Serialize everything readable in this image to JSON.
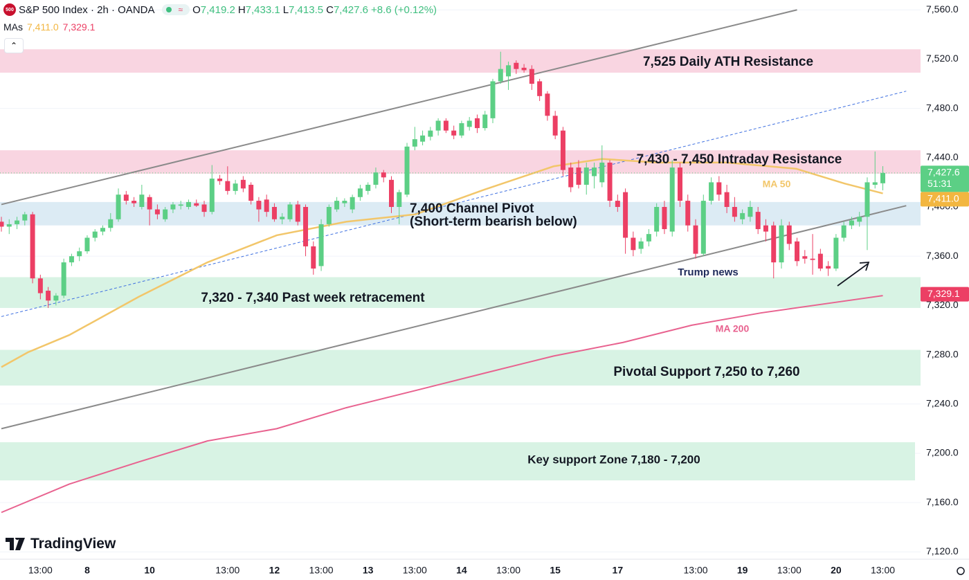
{
  "header": {
    "symbol": "S&P 500 Index · 2h · OANDA",
    "logo": "500",
    "wave": "≈",
    "o_label": "O",
    "open": "7,419.2",
    "h_label": "H",
    "high": "7,433.1",
    "l_label": "L",
    "low": "7,413.5",
    "c_label": "C",
    "close": "7,427.6",
    "change": "+8.6 (+0.12%)",
    "mas_label": "MAs",
    "ma50_value": "7,411.0",
    "ma200_value": "7,329.1",
    "collapse": "⌃"
  },
  "watermark": "TradingView",
  "chart_data": {
    "type": "candlestick",
    "up_color": "#5ccf85",
    "down_color": "#ec3f64",
    "ylim": [
      7114,
      7568
    ],
    "yticks": [
      {
        "value": 7120,
        "label": "7,120.0"
      },
      {
        "value": 7160,
        "label": "7,160.0"
      },
      {
        "value": 7200,
        "label": "7,200.0"
      },
      {
        "value": 7240,
        "label": "7,240.0"
      },
      {
        "value": 7280,
        "label": "7,280.0"
      },
      {
        "value": 7320,
        "label": "7,320.0"
      },
      {
        "value": 7360,
        "label": "7,360.0"
      },
      {
        "value": 7400,
        "label": "7,400.0"
      },
      {
        "value": 7440,
        "label": "7,440.0"
      },
      {
        "value": 7480,
        "label": "7,480.0"
      },
      {
        "value": 7520,
        "label": "7,520.0"
      },
      {
        "value": 7560,
        "label": "7,560.0"
      }
    ],
    "grid": true,
    "categories": [
      null,
      null,
      null,
      null,
      null,
      "13:00",
      null,
      null,
      null,
      null,
      null,
      "8",
      null,
      null,
      null,
      null,
      null,
      null,
      null,
      "10",
      null,
      null,
      null,
      null,
      null,
      null,
      null,
      null,
      null,
      "13:00",
      null,
      null,
      null,
      null,
      null,
      "12",
      null,
      null,
      null,
      null,
      null,
      "13:00",
      null,
      null,
      null,
      null,
      null,
      "13",
      null,
      null,
      null,
      null,
      null,
      "13:00",
      null,
      null,
      null,
      null,
      null,
      "14",
      null,
      null,
      null,
      null,
      null,
      "13:00",
      null,
      null,
      null,
      null,
      null,
      "15",
      null,
      null,
      null,
      null,
      null,
      null,
      null,
      "17",
      null,
      null,
      null,
      null,
      null,
      null,
      null,
      null,
      null,
      "13:00",
      null,
      null,
      null,
      null,
      null,
      "19",
      null,
      null,
      null,
      null,
      null,
      "13:00",
      null,
      null,
      null,
      null,
      null,
      "20",
      null,
      null,
      null,
      null,
      null,
      "13:00"
    ],
    "candles": [
      {
        "o": 7388,
        "h": 7392,
        "l": 7380,
        "c": 7384
      },
      {
        "o": 7384,
        "h": 7390,
        "l": 7378,
        "c": 7386
      },
      {
        "o": 7386,
        "h": 7392,
        "l": 7382,
        "c": 7389
      },
      {
        "o": 7389,
        "h": 7396,
        "l": 7385,
        "c": 7394
      },
      {
        "o": 7394,
        "h": 7396,
        "l": 7338,
        "c": 7342
      },
      {
        "o": 7342,
        "h": 7345,
        "l": 7325,
        "c": 7330
      },
      {
        "o": 7332,
        "h": 7335,
        "l": 7318,
        "c": 7324
      },
      {
        "o": 7324,
        "h": 7330,
        "l": 7320,
        "c": 7328
      },
      {
        "o": 7328,
        "h": 7358,
        "l": 7326,
        "c": 7355
      },
      {
        "o": 7355,
        "h": 7362,
        "l": 7352,
        "c": 7360
      },
      {
        "o": 7360,
        "h": 7367,
        "l": 7356,
        "c": 7364
      },
      {
        "o": 7364,
        "h": 7377,
        "l": 7362,
        "c": 7375
      },
      {
        "o": 7375,
        "h": 7382,
        "l": 7372,
        "c": 7380
      },
      {
        "o": 7380,
        "h": 7385,
        "l": 7377,
        "c": 7383
      },
      {
        "o": 7383,
        "h": 7395,
        "l": 7380,
        "c": 7390
      },
      {
        "o": 7390,
        "h": 7415,
        "l": 7388,
        "c": 7410
      },
      {
        "o": 7410,
        "h": 7413,
        "l": 7402,
        "c": 7405
      },
      {
        "o": 7405,
        "h": 7408,
        "l": 7400,
        "c": 7403
      },
      {
        "o": 7400,
        "h": 7418,
        "l": 7398,
        "c": 7410
      },
      {
        "o": 7408,
        "h": 7410,
        "l": 7385,
        "c": 7398
      },
      {
        "o": 7398,
        "h": 7402,
        "l": 7390,
        "c": 7394
      },
      {
        "o": 7390,
        "h": 7400,
        "l": 7388,
        "c": 7398
      },
      {
        "o": 7398,
        "h": 7404,
        "l": 7395,
        "c": 7402
      },
      {
        "o": 7401,
        "h": 7405,
        "l": 7398,
        "c": 7402
      },
      {
        "o": 7400,
        "h": 7406,
        "l": 7398,
        "c": 7404
      },
      {
        "o": 7403,
        "h": 7406,
        "l": 7400,
        "c": 7401
      },
      {
        "o": 7402,
        "h": 7405,
        "l": 7392,
        "c": 7396
      },
      {
        "o": 7396,
        "h": 7434,
        "l": 7394,
        "c": 7423
      },
      {
        "o": 7423,
        "h": 7426,
        "l": 7418,
        "c": 7421
      },
      {
        "o": 7421,
        "h": 7433,
        "l": 7410,
        "c": 7413
      },
      {
        "o": 7413,
        "h": 7422,
        "l": 7410,
        "c": 7419
      },
      {
        "o": 7422,
        "h": 7425,
        "l": 7412,
        "c": 7415
      },
      {
        "o": 7418,
        "h": 7420,
        "l": 7402,
        "c": 7405
      },
      {
        "o": 7405,
        "h": 7408,
        "l": 7388,
        "c": 7398
      },
      {
        "o": 7406,
        "h": 7410,
        "l": 7392,
        "c": 7396
      },
      {
        "o": 7400,
        "h": 7403,
        "l": 7388,
        "c": 7390
      },
      {
        "o": 7390,
        "h": 7395,
        "l": 7386,
        "c": 7392
      },
      {
        "o": 7390,
        "h": 7404,
        "l": 7388,
        "c": 7402
      },
      {
        "o": 7402,
        "h": 7405,
        "l": 7385,
        "c": 7388
      },
      {
        "o": 7400,
        "h": 7402,
        "l": 7360,
        "c": 7368
      },
      {
        "o": 7368,
        "h": 7372,
        "l": 7345,
        "c": 7350
      },
      {
        "o": 7352,
        "h": 7390,
        "l": 7348,
        "c": 7386
      },
      {
        "o": 7386,
        "h": 7402,
        "l": 7384,
        "c": 7400
      },
      {
        "o": 7398,
        "h": 7408,
        "l": 7396,
        "c": 7405
      },
      {
        "o": 7403,
        "h": 7407,
        "l": 7400,
        "c": 7405
      },
      {
        "o": 7398,
        "h": 7410,
        "l": 7395,
        "c": 7408
      },
      {
        "o": 7408,
        "h": 7418,
        "l": 7405,
        "c": 7415
      },
      {
        "o": 7413,
        "h": 7420,
        "l": 7410,
        "c": 7418
      },
      {
        "o": 7418,
        "h": 7432,
        "l": 7415,
        "c": 7428
      },
      {
        "o": 7428,
        "h": 7430,
        "l": 7420,
        "c": 7424
      },
      {
        "o": 7422,
        "h": 7425,
        "l": 7395,
        "c": 7400
      },
      {
        "o": 7400,
        "h": 7414,
        "l": 7386,
        "c": 7412
      },
      {
        "o": 7410,
        "h": 7452,
        "l": 7408,
        "c": 7449
      },
      {
        "o": 7449,
        "h": 7465,
        "l": 7446,
        "c": 7455
      },
      {
        "o": 7453,
        "h": 7462,
        "l": 7450,
        "c": 7458
      },
      {
        "o": 7457,
        "h": 7465,
        "l": 7454,
        "c": 7462
      },
      {
        "o": 7462,
        "h": 7472,
        "l": 7458,
        "c": 7470
      },
      {
        "o": 7470,
        "h": 7472,
        "l": 7460,
        "c": 7462
      },
      {
        "o": 7462,
        "h": 7466,
        "l": 7455,
        "c": 7458
      },
      {
        "o": 7458,
        "h": 7470,
        "l": 7456,
        "c": 7468
      },
      {
        "o": 7465,
        "h": 7473,
        "l": 7462,
        "c": 7470
      },
      {
        "o": 7472,
        "h": 7475,
        "l": 7460,
        "c": 7464
      },
      {
        "o": 7464,
        "h": 7478,
        "l": 7462,
        "c": 7475
      },
      {
        "o": 7472,
        "h": 7504,
        "l": 7468,
        "c": 7502
      },
      {
        "o": 7502,
        "h": 7526,
        "l": 7500,
        "c": 7512
      },
      {
        "o": 7506,
        "h": 7518,
        "l": 7495,
        "c": 7515
      },
      {
        "o": 7517,
        "h": 7519,
        "l": 7508,
        "c": 7512
      },
      {
        "o": 7513,
        "h": 7516,
        "l": 7509,
        "c": 7511
      },
      {
        "o": 7512,
        "h": 7515,
        "l": 7495,
        "c": 7500
      },
      {
        "o": 7502,
        "h": 7504,
        "l": 7486,
        "c": 7490
      },
      {
        "o": 7492,
        "h": 7494,
        "l": 7470,
        "c": 7474
      },
      {
        "o": 7474,
        "h": 7478,
        "l": 7455,
        "c": 7458
      },
      {
        "o": 7462,
        "h": 7465,
        "l": 7425,
        "c": 7430
      },
      {
        "o": 7432,
        "h": 7436,
        "l": 7412,
        "c": 7416
      },
      {
        "o": 7432,
        "h": 7438,
        "l": 7415,
        "c": 7418
      },
      {
        "o": 7418,
        "h": 7436,
        "l": 7410,
        "c": 7432
      },
      {
        "o": 7425,
        "h": 7436,
        "l": 7415,
        "c": 7432
      },
      {
        "o": 7420,
        "h": 7450,
        "l": 7416,
        "c": 7436
      },
      {
        "o": 7436,
        "h": 7438,
        "l": 7400,
        "c": 7405
      },
      {
        "o": 7405,
        "h": 7410,
        "l": 7396,
        "c": 7400
      },
      {
        "o": 7412,
        "h": 7415,
        "l": 7362,
        "c": 7375
      },
      {
        "o": 7375,
        "h": 7380,
        "l": 7360,
        "c": 7365
      },
      {
        "o": 7366,
        "h": 7375,
        "l": 7362,
        "c": 7372
      },
      {
        "o": 7372,
        "h": 7382,
        "l": 7368,
        "c": 7378
      },
      {
        "o": 7380,
        "h": 7403,
        "l": 7376,
        "c": 7400
      },
      {
        "o": 7400,
        "h": 7405,
        "l": 7378,
        "c": 7382
      },
      {
        "o": 7380,
        "h": 7438,
        "l": 7376,
        "c": 7432
      },
      {
        "o": 7432,
        "h": 7436,
        "l": 7400,
        "c": 7405
      },
      {
        "o": 7405,
        "h": 7410,
        "l": 7380,
        "c": 7385
      },
      {
        "o": 7385,
        "h": 7390,
        "l": 7358,
        "c": 7362
      },
      {
        "o": 7362,
        "h": 7410,
        "l": 7360,
        "c": 7405
      },
      {
        "o": 7405,
        "h": 7424,
        "l": 7402,
        "c": 7420
      },
      {
        "o": 7420,
        "h": 7425,
        "l": 7405,
        "c": 7410
      },
      {
        "o": 7412,
        "h": 7418,
        "l": 7395,
        "c": 7400
      },
      {
        "o": 7400,
        "h": 7408,
        "l": 7388,
        "c": 7392
      },
      {
        "o": 7390,
        "h": 7398,
        "l": 7386,
        "c": 7395
      },
      {
        "o": 7392,
        "h": 7405,
        "l": 7388,
        "c": 7400
      },
      {
        "o": 7396,
        "h": 7400,
        "l": 7378,
        "c": 7382
      },
      {
        "o": 7385,
        "h": 7390,
        "l": 7372,
        "c": 7380
      },
      {
        "o": 7385,
        "h": 7388,
        "l": 7342,
        "c": 7355
      },
      {
        "o": 7355,
        "h": 7390,
        "l": 7350,
        "c": 7385
      },
      {
        "o": 7385,
        "h": 7388,
        "l": 7365,
        "c": 7370
      },
      {
        "o": 7372,
        "h": 7375,
        "l": 7352,
        "c": 7356
      },
      {
        "o": 7360,
        "h": 7365,
        "l": 7354,
        "c": 7358
      },
      {
        "o": 7358,
        "h": 7378,
        "l": 7345,
        "c": 7357
      },
      {
        "o": 7362,
        "h": 7366,
        "l": 7348,
        "c": 7350
      },
      {
        "o": 7352,
        "h": 7356,
        "l": 7344,
        "c": 7350
      },
      {
        "o": 7350,
        "h": 7378,
        "l": 7348,
        "c": 7375
      },
      {
        "o": 7375,
        "h": 7388,
        "l": 7372,
        "c": 7385
      },
      {
        "o": 7385,
        "h": 7392,
        "l": 7382,
        "c": 7389
      },
      {
        "o": 7388,
        "h": 7396,
        "l": 7384,
        "c": 7392
      },
      {
        "o": 7392,
        "h": 7424,
        "l": 7365,
        "c": 7420
      },
      {
        "o": 7418,
        "h": 7445,
        "l": 7415,
        "c": 7420
      },
      {
        "o": 7419.2,
        "h": 7433.1,
        "l": 7413.5,
        "c": 7427.6
      }
    ],
    "zones": [
      {
        "from": 7509,
        "to": 7528,
        "color": "#f9d5e1",
        "label": "7,525 Daily ATH Resistance"
      },
      {
        "from": 7427,
        "to": 7446,
        "color": "#f9d5e1",
        "label": "7,430 - 7,450 Intraday Resistance"
      },
      {
        "from": 7385,
        "to": 7404,
        "color": "#dcebf4",
        "label": "7,400 Channel Pivot",
        "label2": "(Short-term bearish below)"
      },
      {
        "from": 7318,
        "to": 7343,
        "color": "#d8f3e4",
        "label": "7,320 - 7,340 Past week retracement"
      },
      {
        "from": 7255,
        "to": 7284,
        "color": "#d8f3e4",
        "label": "Pivotal Support 7,250 to 7,260"
      },
      {
        "from": 7178,
        "to": 7209,
        "color": "#d8f3e4",
        "label": "Key support Zone 7,180 - 7,200"
      }
    ],
    "trend_lines": [
      {
        "color": "#8a8a8a",
        "x": [
          0,
          102
        ],
        "values": [
          7402,
          7560
        ]
      },
      {
        "color": "#8a8a8a",
        "x": [
          0,
          116
        ],
        "values": [
          7220,
          7401
        ]
      },
      {
        "color": "#3d6fe0",
        "dashed": true,
        "x": [
          0,
          116
        ],
        "values": [
          7311,
          7494
        ]
      }
    ],
    "series": [
      {
        "name": "MA 50",
        "color": "#f2c66a",
        "x": [
          0,
          3.4,
          8.7,
          17.6,
          26.4,
          35.3,
          44.2,
          53.1,
          61.9,
          70.8,
          77,
          84.1,
          93,
          101.9,
          108.1,
          113
        ],
        "values": [
          7270,
          7282,
          7296,
          7327,
          7355,
          7377,
          7388,
          7394,
          7414,
          7433,
          7439,
          7436,
          7436,
          7431,
          7419,
          7411
        ]
      },
      {
        "name": "MA 200",
        "color": "#e8628f",
        "x": [
          0,
          8.7,
          17.6,
          26.4,
          35.3,
          44.2,
          53.1,
          61.9,
          70.8,
          79.7,
          88.5,
          97.4,
          106.3,
          113
        ],
        "values": [
          7152,
          7175,
          7193,
          7210,
          7220,
          7237,
          7251,
          7265,
          7279,
          7290,
          7304,
          7314,
          7322,
          7328
        ]
      }
    ],
    "annotations": [
      {
        "text": "Trump news",
        "color": "#1e2a5a"
      }
    ],
    "price_labels": [
      {
        "value": 7427.6,
        "label": "7,427.6",
        "sub": "51:31",
        "color": "#5ccf85"
      },
      {
        "value": 7411.0,
        "label": "7,411.0",
        "color": "#f2b640"
      },
      {
        "value": 7329.1,
        "label": "7,329.1",
        "color": "#ec3f64"
      }
    ]
  }
}
